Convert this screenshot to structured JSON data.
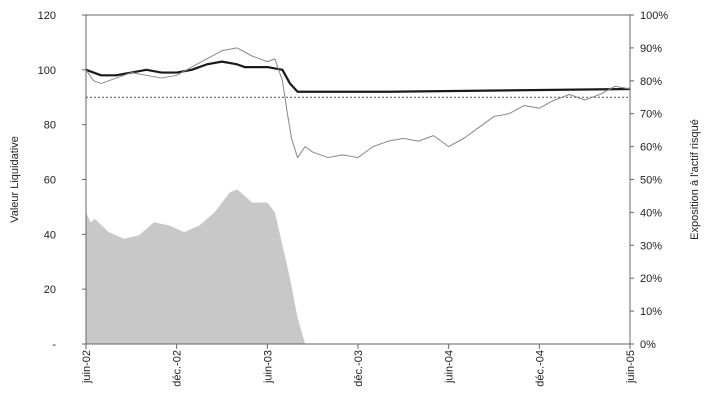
{
  "chart_data": {
    "type": "line",
    "title": "",
    "ylabel_left": "Valeur Liquidative",
    "ylabel_right": "Exposition à l'actif risqué",
    "left_ticks": [
      {
        "value": 0,
        "label": "-"
      },
      {
        "value": 20,
        "label": "20"
      },
      {
        "value": 40,
        "label": "40"
      },
      {
        "value": 60,
        "label": "60"
      },
      {
        "value": 80,
        "label": "80"
      },
      {
        "value": 100,
        "label": "100"
      },
      {
        "value": 120,
        "label": "120"
      }
    ],
    "right_ticks": [
      {
        "value": 0,
        "label": "0%"
      },
      {
        "value": 10,
        "label": "10%"
      },
      {
        "value": 20,
        "label": "20%"
      },
      {
        "value": 30,
        "label": "30%"
      },
      {
        "value": 40,
        "label": "40%"
      },
      {
        "value": 50,
        "label": "50%"
      },
      {
        "value": 60,
        "label": "60%"
      },
      {
        "value": 70,
        "label": "70%"
      },
      {
        "value": 80,
        "label": "80%"
      },
      {
        "value": 90,
        "label": "90%"
      },
      {
        "value": 100,
        "label": "100%"
      }
    ],
    "x_ticks": [
      {
        "month": 0,
        "label": "juin-02"
      },
      {
        "month": 6,
        "label": "déc.-02"
      },
      {
        "month": 12,
        "label": "juin-03"
      },
      {
        "month": 18,
        "label": "déc.-03"
      },
      {
        "month": 24,
        "label": "juin-04"
      },
      {
        "month": 30,
        "label": "déc.-04"
      },
      {
        "month": 36,
        "label": "juin-05"
      }
    ],
    "ylim_left": [
      0,
      120
    ],
    "ylim_right": [
      0,
      100
    ],
    "xlim_months": [
      0,
      36
    ],
    "floor_line": {
      "value": 90,
      "style": "dotted"
    },
    "series": [
      {
        "axis": "left",
        "style": "thick-dark",
        "x": [
          0,
          1,
          2,
          3,
          4,
          5,
          6,
          7,
          7.5,
          8,
          9,
          10,
          10.5,
          11,
          12,
          13,
          13.5,
          14,
          15,
          20,
          36
        ],
        "y": [
          100,
          98,
          98,
          99,
          100,
          99,
          99,
          100,
          101,
          102,
          103,
          102,
          101,
          101,
          101,
          100,
          95,
          92,
          92,
          92,
          93
        ]
      },
      {
        "axis": "left",
        "style": "thin-grey",
        "x": [
          0,
          0.5,
          1,
          2,
          3,
          4,
          5,
          6,
          7,
          8,
          9,
          10,
          11,
          12,
          12.5,
          13,
          13.3,
          13.6,
          14,
          14.5,
          15,
          16,
          17,
          18,
          19,
          20,
          21,
          22,
          23,
          24,
          25,
          26,
          27,
          28,
          29,
          30,
          31,
          32,
          33,
          34,
          35,
          36
        ],
        "y": [
          100,
          96,
          95,
          97,
          99,
          98,
          97,
          98,
          101,
          104,
          107,
          108,
          105,
          103,
          104,
          96,
          85,
          75,
          68,
          72,
          70,
          68,
          69,
          68,
          72,
          74,
          75,
          74,
          76,
          72,
          75,
          79,
          83,
          84,
          87,
          86,
          89,
          91,
          89,
          91,
          94,
          93
        ]
      },
      {
        "axis": "right",
        "style": "grey-area",
        "x": [
          0,
          0.3,
          0.6,
          1.5,
          2.5,
          3.5,
          4.5,
          5.5,
          6.5,
          7.5,
          8.5,
          9.5,
          10,
          11,
          12,
          12.5,
          13,
          13.5,
          14,
          14.5
        ],
        "y": [
          40,
          37,
          38,
          34,
          32,
          33,
          37,
          36,
          34,
          36,
          40,
          46,
          47,
          43,
          43,
          40,
          30,
          20,
          8,
          0
        ]
      }
    ]
  }
}
